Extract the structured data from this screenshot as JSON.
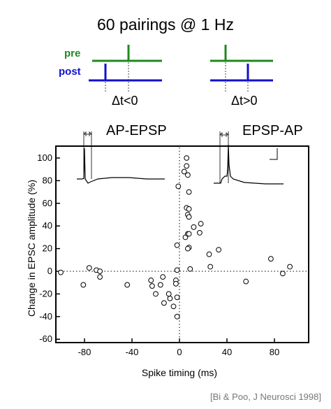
{
  "title": "60 pairings @ 1 Hz",
  "protocol": {
    "pre_label": "pre",
    "post_label": "post",
    "neg_label": "Δt<0",
    "pos_label": "Δt>0",
    "pre_color": "#1e8a1e",
    "post_color": "#1010cc"
  },
  "insets": {
    "left_label": "AP-EPSP",
    "right_label": "EPSP-AP"
  },
  "citation": "[Bi & Poo, J Neurosci 1998]",
  "chart_data": {
    "type": "scatter",
    "xlabel": "Spike timing (ms)",
    "ylabel": "Change in EPSC amplitude (%)",
    "xlim": [
      -105,
      105
    ],
    "ylim": [
      -60,
      105
    ],
    "xticks": [
      -80,
      -40,
      0,
      40,
      80
    ],
    "yticks": [
      -60,
      -40,
      -20,
      0,
      20,
      40,
      60,
      80,
      100
    ],
    "reference_lines": "dotted at x=0 and y=0",
    "grid": false,
    "marker": "open circle",
    "points": [
      [
        -100,
        -1
      ],
      [
        -81,
        -12
      ],
      [
        -76,
        3
      ],
      [
        -70,
        1
      ],
      [
        -67,
        -5
      ],
      [
        -67,
        0
      ],
      [
        -44,
        -12
      ],
      [
        -24,
        -8
      ],
      [
        -23,
        -13
      ],
      [
        -20,
        -20
      ],
      [
        -16,
        -12
      ],
      [
        -14,
        -5
      ],
      [
        -13,
        -28
      ],
      [
        -9,
        -20
      ],
      [
        -8,
        -24
      ],
      [
        -5,
        -31
      ],
      [
        -3,
        -8
      ],
      [
        -3,
        -11
      ],
      [
        -2,
        -23
      ],
      [
        -2,
        -40
      ],
      [
        -2,
        1
      ],
      [
        -2,
        23
      ],
      [
        -1,
        75
      ],
      [
        4,
        88
      ],
      [
        6,
        100
      ],
      [
        6,
        93
      ],
      [
        7,
        85
      ],
      [
        8,
        70
      ],
      [
        6,
        56
      ],
      [
        7,
        50
      ],
      [
        8,
        55
      ],
      [
        8,
        48
      ],
      [
        5,
        30
      ],
      [
        7,
        33
      ],
      [
        8,
        33
      ],
      [
        8,
        21
      ],
      [
        7,
        20
      ],
      [
        9,
        2
      ],
      [
        12,
        39
      ],
      [
        17,
        34
      ],
      [
        18,
        42
      ],
      [
        25,
        15
      ],
      [
        26,
        4
      ],
      [
        33,
        19
      ],
      [
        56,
        -9
      ],
      [
        77,
        11
      ],
      [
        87,
        -2
      ],
      [
        93,
        4
      ]
    ]
  }
}
